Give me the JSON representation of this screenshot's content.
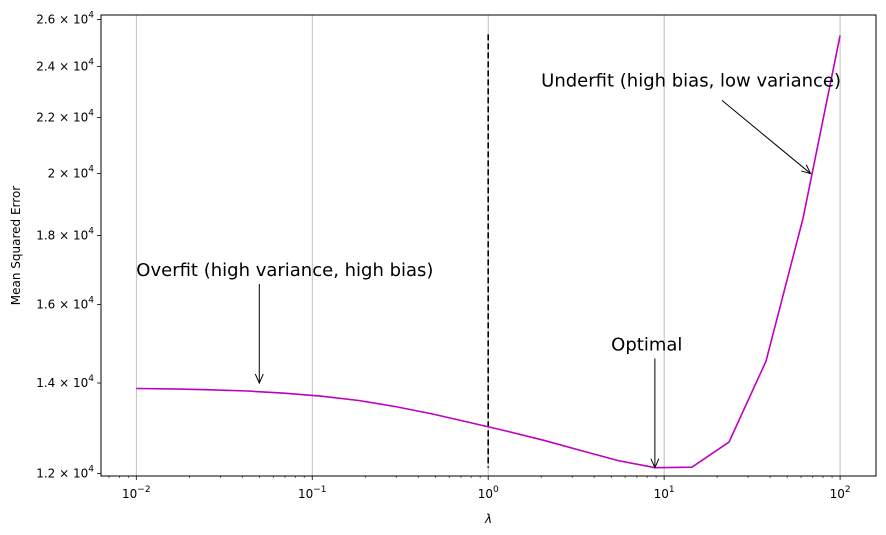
{
  "chart_data": {
    "type": "line",
    "xscale": "log",
    "yscale": "log",
    "xlabel": "λ",
    "ylabel": "Mean Squared Error",
    "xlim": [
      0.0063,
      160
    ],
    "ylim": [
      11950,
      26200
    ],
    "grid": "vertical",
    "line_color": "#bf00bf",
    "x": [
      0.01,
      0.0162,
      0.0264,
      0.0428,
      0.0695,
      0.1129,
      0.1833,
      0.2976,
      0.4833,
      0.7848,
      1.274,
      2.069,
      3.36,
      5.456,
      8.859,
      14.38,
      23.36,
      37.93,
      61.58,
      100
    ],
    "y": [
      13870,
      13860,
      13840,
      13810,
      13760,
      13690,
      13590,
      13450,
      13280,
      13090,
      12900,
      12700,
      12480,
      12270,
      12120,
      12130,
      12660,
      14530,
      18530,
      25300
    ],
    "vline": {
      "x": 1,
      "y_from": 12120,
      "y_to": 25350,
      "style": "dashed",
      "color": "#000000"
    },
    "xticks": [
      {
        "value": 0.01,
        "base": "10",
        "exp": "−2"
      },
      {
        "value": 0.1,
        "base": "10",
        "exp": "−1"
      },
      {
        "value": 1,
        "base": "10",
        "exp": "0"
      },
      {
        "value": 10,
        "base": "10",
        "exp": "1"
      },
      {
        "value": 100,
        "base": "10",
        "exp": "2"
      }
    ],
    "yticks": [
      {
        "value": 12000,
        "mant": "1.2 × 10",
        "exp": "4"
      },
      {
        "value": 14000,
        "mant": "1.4 × 10",
        "exp": "4"
      },
      {
        "value": 16000,
        "mant": "1.6 × 10",
        "exp": "4"
      },
      {
        "value": 18000,
        "mant": "1.8 × 10",
        "exp": "4"
      },
      {
        "value": 20000,
        "mant": "2 × 10",
        "exp": "4"
      },
      {
        "value": 22000,
        "mant": "2.2 × 10",
        "exp": "4"
      },
      {
        "value": 24000,
        "mant": "2.4 × 10",
        "exp": "4"
      },
      {
        "value": 26000,
        "mant": "2.6 × 10",
        "exp": "4"
      }
    ],
    "annotations": [
      {
        "text": "Overfit (high variance, high bias)",
        "text_x": 0.01,
        "text_y": 16800,
        "point_x": 0.05,
        "point_y": 14000,
        "anchor": "start"
      },
      {
        "text": "Optimal",
        "text_x": 5,
        "text_y": 14800,
        "point_x": 8.859,
        "point_y": 12120,
        "anchor": "start"
      },
      {
        "text": "Underfit (high bias, low variance)",
        "text_x": 2,
        "text_y": 23200,
        "point_x": 68,
        "point_y": 20000,
        "anchor": "start"
      }
    ]
  }
}
